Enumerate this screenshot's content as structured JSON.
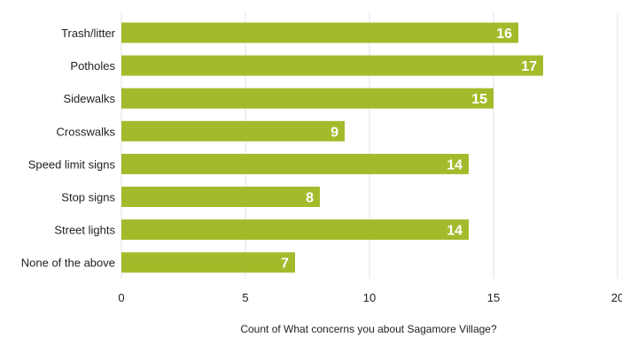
{
  "chart_data": {
    "type": "bar",
    "orientation": "horizontal",
    "categories": [
      "Trash/litter",
      "Potholes",
      "Sidewalks",
      "Crosswalks",
      "Speed limit signs",
      "Stop signs",
      "Street lights",
      "None of the above"
    ],
    "values": [
      16,
      17,
      15,
      9,
      14,
      8,
      14,
      7
    ],
    "xlabel": "Count of What concerns you about Sagamore Village?",
    "ylabel": "",
    "xlim": [
      0,
      20
    ],
    "xticks": [
      0,
      5,
      10,
      15,
      20
    ],
    "grid": true,
    "legend": "none",
    "data_labels": true,
    "colors": {
      "bar": "#a3bb2b",
      "grid": "#e3e3e3",
      "label": "#ffffff"
    }
  }
}
